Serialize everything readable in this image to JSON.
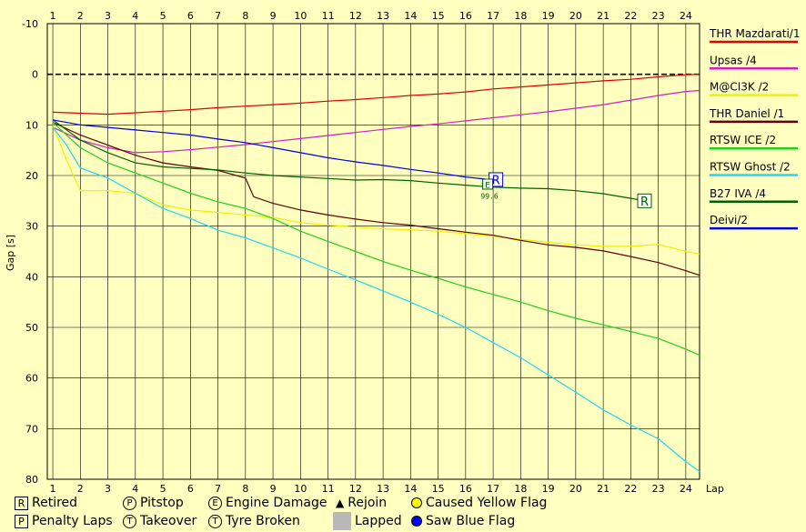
{
  "chart_data": {
    "type": "line",
    "title": "",
    "xlabel": "Lap",
    "ylabel": "Gap [s]",
    "x_ticks": [
      1,
      2,
      3,
      4,
      5,
      6,
      7,
      8,
      9,
      10,
      11,
      12,
      13,
      14,
      15,
      16,
      17,
      18,
      19,
      20,
      21,
      22,
      23,
      24
    ],
    "y_ticks": [
      -10,
      0,
      10,
      20,
      30,
      40,
      50,
      60,
      70,
      80
    ],
    "ylim": [
      -10,
      80
    ],
    "y_inverted": true,
    "xlim": [
      0.8,
      24.5
    ],
    "grid": true,
    "legend_position": "right",
    "series": [
      {
        "name": "THR Mazdarati/1",
        "color": "#e00000",
        "x": [
          1,
          2,
          3,
          4,
          5,
          6,
          7,
          8,
          9,
          10,
          11,
          12,
          13,
          14,
          15,
          16,
          17,
          18,
          19,
          20,
          21,
          22,
          23,
          24,
          24.5
        ],
        "y": [
          7.5,
          7.7,
          7.9,
          7.6,
          7.3,
          7.0,
          6.6,
          6.3,
          6.0,
          5.7,
          5.3,
          5.0,
          4.6,
          4.2,
          3.9,
          3.5,
          2.9,
          2.5,
          2.1,
          1.7,
          1.3,
          1.0,
          0.5,
          0.1,
          0
        ]
      },
      {
        "name": "Upsas /4",
        "color": "#d020c0",
        "x": [
          1,
          2,
          3,
          4,
          5,
          6,
          7,
          8,
          9,
          10,
          11,
          12,
          13,
          14,
          15,
          16,
          17,
          18,
          19,
          20,
          21,
          22,
          23,
          24,
          24.5
        ],
        "y": [
          10.5,
          13.0,
          14.5,
          15.5,
          15.3,
          14.9,
          14.4,
          13.9,
          13.3,
          12.7,
          12.1,
          11.5,
          10.9,
          10.3,
          9.8,
          9.2,
          8.6,
          8.0,
          7.4,
          6.7,
          6.0,
          5.1,
          4.2,
          3.4,
          3.2
        ]
      },
      {
        "name": "M@CI3K /2",
        "color": "#f0f000",
        "x": [
          1,
          1.5,
          2,
          3,
          4,
          5,
          6,
          7,
          8,
          9,
          10,
          11,
          12,
          13,
          14,
          15,
          16,
          17,
          18,
          19,
          20,
          21,
          22,
          23,
          24,
          24.5
        ],
        "y": [
          10,
          17,
          23,
          23,
          23.5,
          25.8,
          26.8,
          27.3,
          27.8,
          28.3,
          29.3,
          29.8,
          30.2,
          30.5,
          30.7,
          31.0,
          31.5,
          32.0,
          32.6,
          33.2,
          33.7,
          34.0,
          34.0,
          33.6,
          35.0,
          35.5
        ]
      },
      {
        "name": "THR Daniel /1",
        "color": "#600000",
        "x": [
          1,
          2,
          3,
          4,
          5,
          6,
          7,
          8,
          8.3,
          9,
          10,
          11,
          12,
          13,
          14,
          15,
          16,
          17,
          18,
          19,
          20,
          21,
          22,
          23,
          24,
          24.5
        ],
        "y": [
          9.5,
          12,
          14,
          16,
          17.5,
          18.3,
          19.0,
          20.5,
          24.2,
          25.5,
          26.8,
          27.8,
          28.6,
          29.3,
          29.8,
          30.5,
          31.2,
          31.8,
          32.8,
          33.7,
          34.2,
          34.9,
          36.0,
          37.2,
          38.8,
          39.7
        ]
      },
      {
        "name": "RTSW ICE /2",
        "color": "#20d020",
        "x": [
          1,
          2,
          3,
          4,
          5,
          6,
          7,
          8,
          9,
          10,
          11,
          12,
          13,
          14,
          15,
          16,
          17,
          18,
          19,
          20,
          21,
          22,
          23,
          24,
          24.5
        ],
        "y": [
          9.5,
          14.5,
          17.5,
          19.5,
          21.5,
          23.5,
          25.2,
          26.5,
          28.5,
          31.0,
          33.0,
          35.0,
          37.0,
          38.7,
          40.3,
          42.0,
          43.5,
          45.0,
          46.7,
          48.2,
          49.5,
          50.8,
          52.2,
          54.3,
          55.5
        ]
      },
      {
        "name": "RTSW Ghost /2",
        "color": "#20d8f0",
        "x": [
          1,
          1.5,
          2,
          3,
          4,
          5,
          6,
          7,
          8,
          9,
          10,
          11,
          12,
          13,
          14,
          15,
          16,
          17,
          18,
          19,
          20,
          21,
          22,
          23,
          24,
          24.5
        ],
        "y": [
          10.5,
          14,
          18.5,
          20.5,
          23.5,
          26.5,
          28.5,
          30.8,
          32.3,
          34.3,
          36.3,
          38.5,
          40.6,
          42.8,
          45.0,
          47.4,
          50.0,
          53.0,
          56.0,
          59.4,
          62.8,
          66.3,
          69.3,
          72.0,
          76.5,
          78.5
        ]
      },
      {
        "name": "B27 IVA /4",
        "color": "#006000",
        "x": [
          1,
          2,
          3,
          4,
          5,
          6,
          7,
          8,
          9,
          10,
          11,
          12,
          13,
          14,
          15,
          16,
          17,
          18,
          19,
          20,
          21,
          22,
          22.3
        ],
        "y": [
          9.0,
          13,
          15.5,
          17.5,
          18.3,
          18.6,
          18.9,
          19.5,
          20.0,
          20.3,
          20.6,
          20.9,
          20.8,
          21.0,
          21.5,
          21.9,
          22.3,
          22.5,
          22.6,
          23.0,
          23.6,
          24.5,
          24.8
        ]
      },
      {
        "name": "Deivi/2",
        "color": "#0000e0",
        "x": [
          1,
          2,
          3,
          4,
          5,
          6,
          7,
          8,
          9,
          10,
          11,
          12,
          13,
          14,
          15,
          16,
          16.7
        ],
        "y": [
          9.0,
          10.0,
          10.5,
          11.0,
          11.5,
          12.0,
          12.8,
          13.5,
          14.5,
          15.5,
          16.5,
          17.3,
          18.0,
          18.8,
          19.5,
          20.3,
          20.7
        ]
      }
    ],
    "markers": [
      {
        "symbol": "R",
        "x": 17.1,
        "y": 20.8,
        "color": "#0000e0"
      },
      {
        "symbol": "R",
        "x": 22.5,
        "y": 25.0,
        "color": "#006000"
      },
      {
        "symbol": "E",
        "x": 16.8,
        "y": 21.7,
        "color": "#006000",
        "label": "99.6"
      }
    ]
  },
  "key": {
    "retired": "Retired",
    "retired_symbol": "R",
    "penalty": "Penalty Laps",
    "penalty_symbol": "P",
    "pitstop": "Pitstop",
    "pitstop_symbol": "P",
    "takeover": "Takeover",
    "takeover_symbol": "T",
    "engine": "Engine Damage",
    "engine_symbol": "E",
    "tyre": "Tyre Broken",
    "tyre_symbol": "T",
    "rejoin": "Rejoin",
    "rejoin_symbol": "▲",
    "lapped": "Lapped",
    "yellow": "Caused Yellow Flag",
    "yellow_color": "#ffff00",
    "blue": "Saw Blue Flag",
    "blue_color": "#0000ff"
  }
}
